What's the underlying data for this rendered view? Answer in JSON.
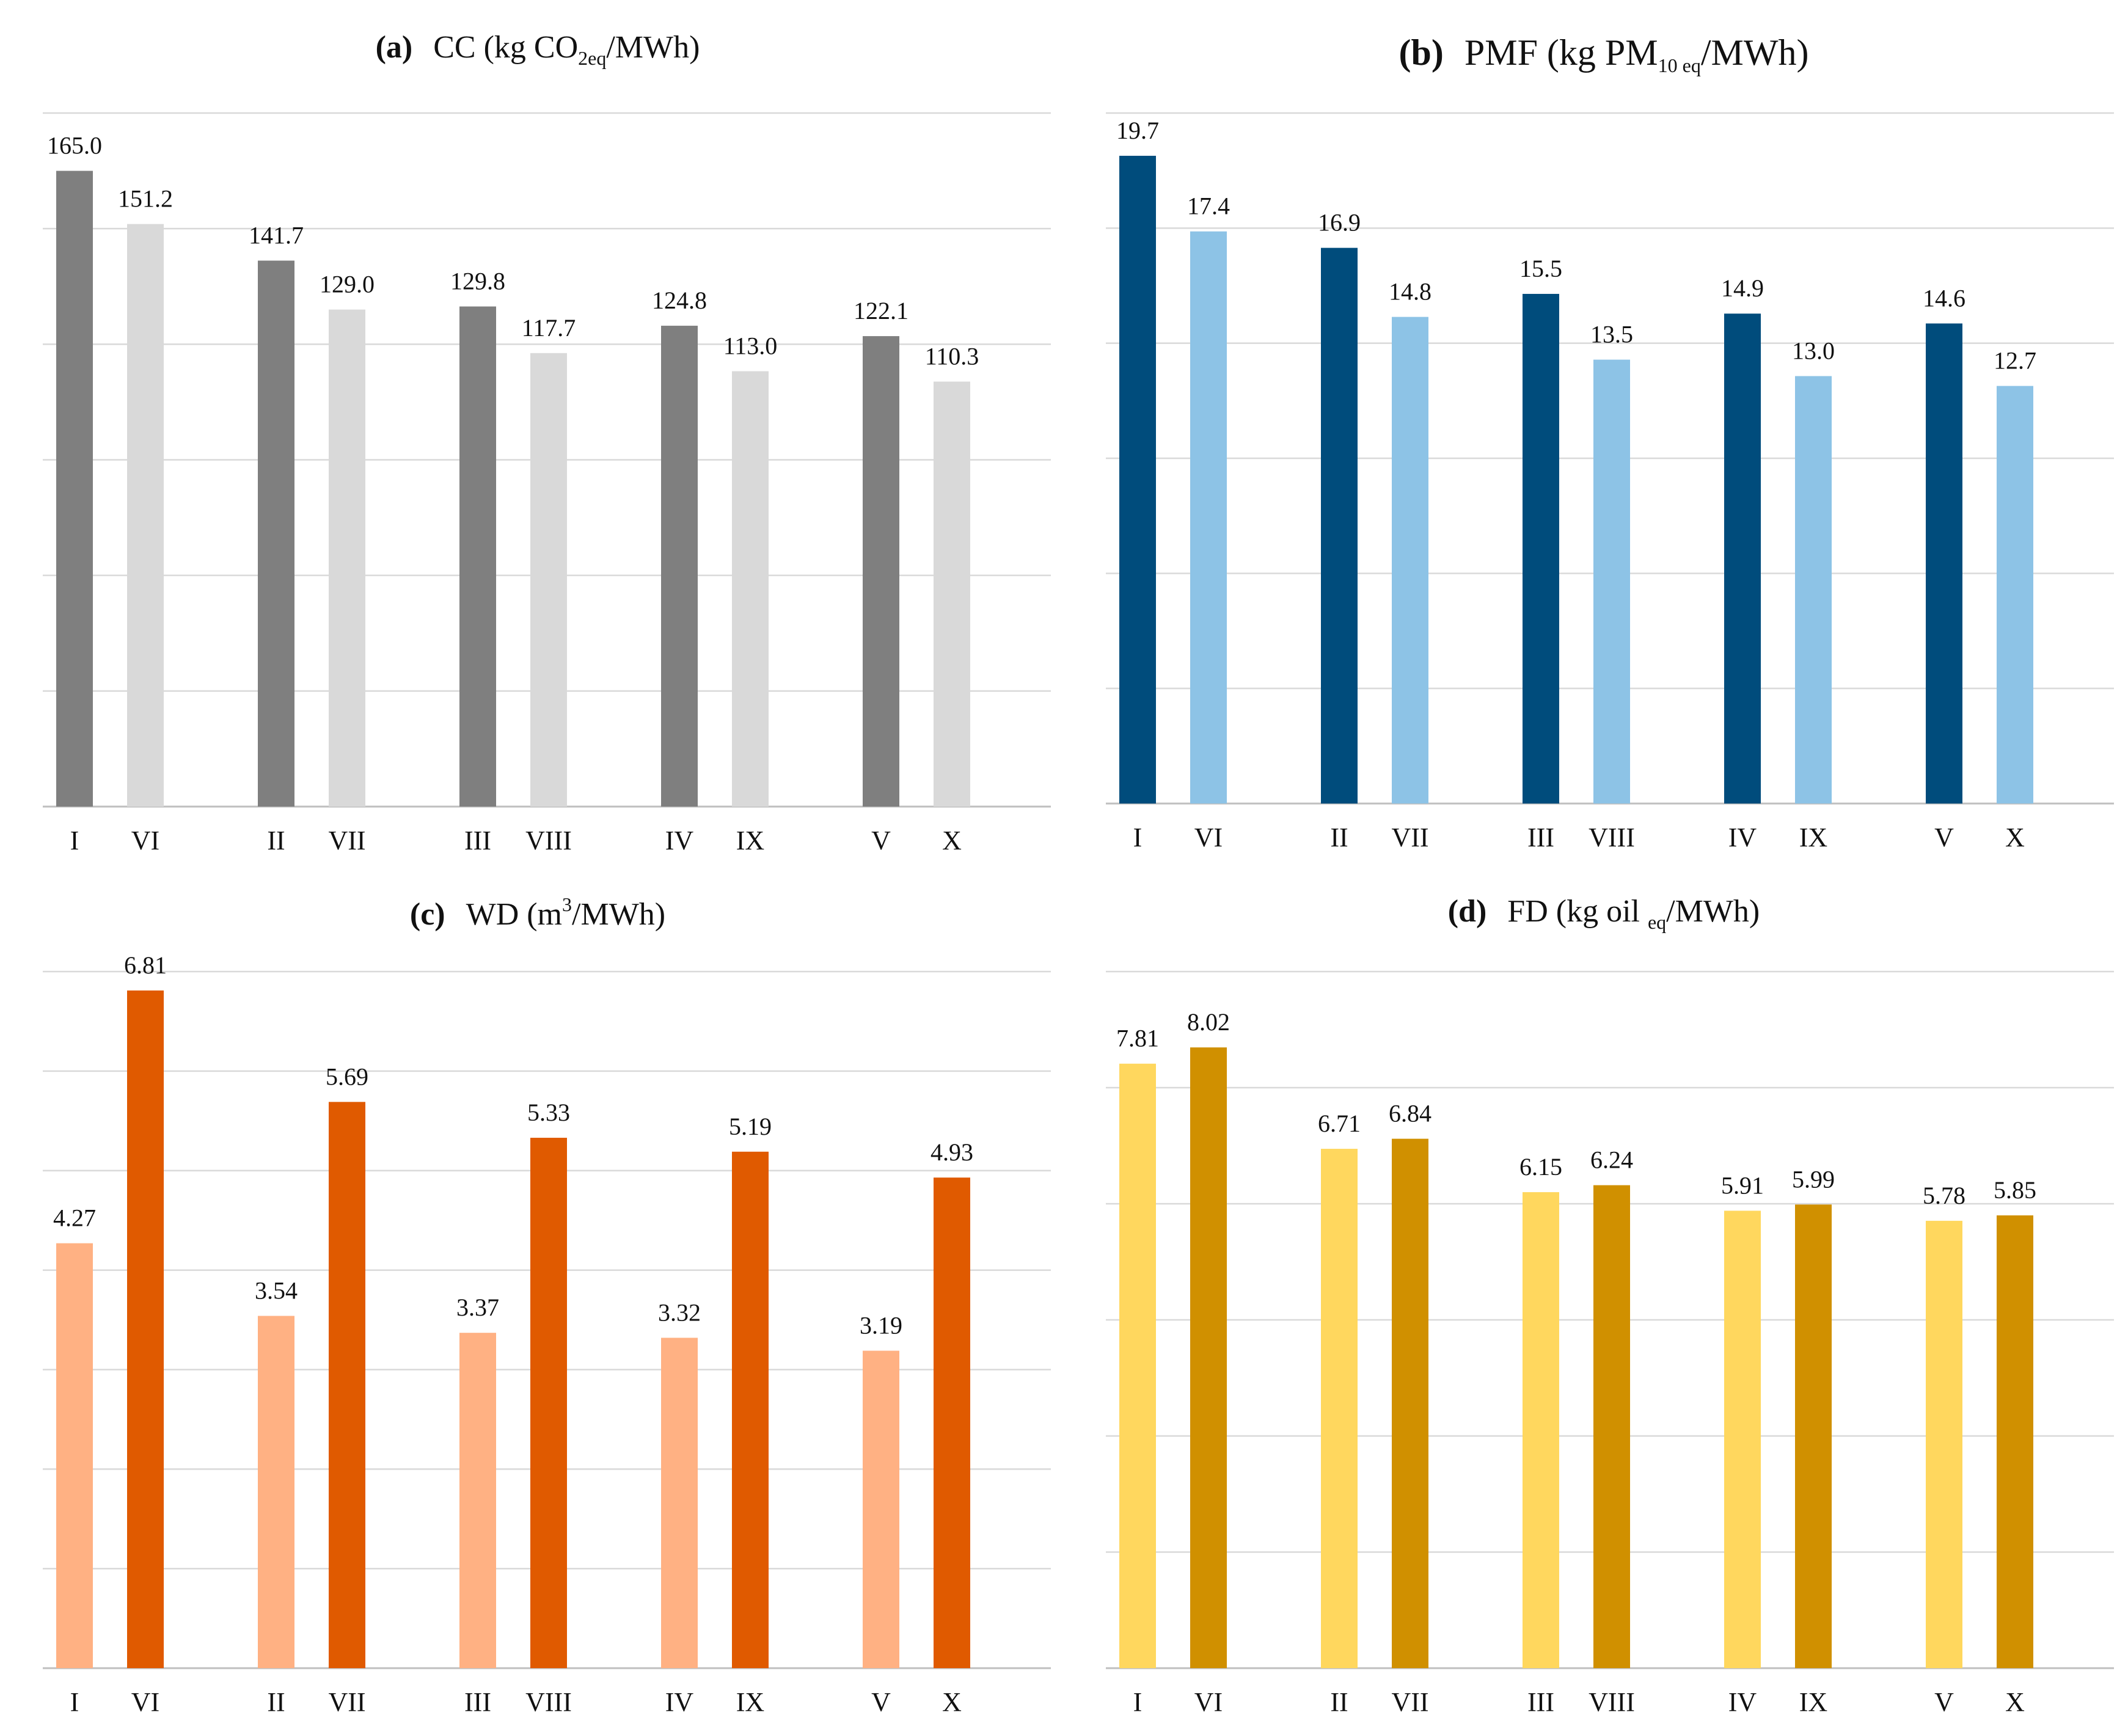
{
  "chart_data": [
    {
      "type": "bar",
      "panel_label": "(a)",
      "title_main": "CC (kg CO",
      "title_sub": "2eq",
      "title_tail": "/MWh)",
      "categories": [
        "I",
        "VI",
        "II",
        "VII",
        "III",
        "VIII",
        "IV",
        "IX",
        "V",
        "X"
      ],
      "values": [
        165.0,
        151.2,
        141.7,
        129.0,
        129.8,
        117.7,
        124.8,
        113.0,
        122.1,
        110.3
      ],
      "value_labels": [
        "165.0",
        "151.2",
        "141.7",
        "129.0",
        "129.8",
        "117.7",
        "124.8",
        "113.0",
        "122.1",
        "110.3"
      ],
      "colors": [
        "#7f7f7f",
        "#d9d9d9"
      ],
      "ylim": [
        0,
        180
      ],
      "gridlines": 6,
      "xlabel": "",
      "ylabel": ""
    },
    {
      "type": "bar",
      "panel_label": "(b)",
      "title_main": "PMF (kg PM",
      "title_sub": "10 eq",
      "title_tail": "/MWh)",
      "categories": [
        "I",
        "VI",
        "II",
        "VII",
        "III",
        "VIII",
        "IV",
        "IX",
        "V",
        "X"
      ],
      "values": [
        19.7,
        17.4,
        16.9,
        14.8,
        15.5,
        13.5,
        14.9,
        13.0,
        14.6,
        12.7
      ],
      "value_labels": [
        "19.7",
        "17.4",
        "16.9",
        "14.8",
        "15.5",
        "13.5",
        "14.9",
        "13.0",
        "14.6",
        "12.7"
      ],
      "colors": [
        "#004c7c",
        "#8dc3e6"
      ],
      "ylim": [
        0,
        21
      ],
      "gridlines": 6,
      "xlabel": "",
      "ylabel": ""
    },
    {
      "type": "bar",
      "panel_label": "(c)",
      "title_main": "WD (m",
      "title_sup": "3",
      "title_tail": "/MWh)",
      "categories": [
        "I",
        "VI",
        "II",
        "VII",
        "III",
        "VIII",
        "IV",
        "IX",
        "V",
        "X"
      ],
      "values": [
        4.27,
        6.81,
        3.54,
        5.69,
        3.37,
        5.33,
        3.32,
        5.19,
        3.19,
        4.93
      ],
      "value_labels": [
        "4.27",
        "6.81",
        "3.54",
        "5.69",
        "3.37",
        "5.33",
        "3.32",
        "5.19",
        "3.19",
        "4.93"
      ],
      "colors": [
        "#ffb183",
        "#e05a00"
      ],
      "ylim": [
        0,
        7
      ],
      "gridlines": 7,
      "xlabel": "",
      "ylabel": ""
    },
    {
      "type": "bar",
      "panel_label": "(d)",
      "title_main": "FD (kg oil ",
      "title_sub": "eq",
      "title_tail": "/MWh)",
      "categories": [
        "I",
        "VI",
        "II",
        "VII",
        "III",
        "VIII",
        "IV",
        "IX",
        "V",
        "X"
      ],
      "values": [
        7.81,
        8.02,
        6.71,
        6.84,
        6.15,
        6.24,
        5.91,
        5.99,
        5.78,
        5.85
      ],
      "value_labels": [
        "7.81",
        "8.02",
        "6.71",
        "6.84",
        "6.15",
        "6.24",
        "5.91",
        "5.99",
        "5.78",
        "5.85"
      ],
      "colors": [
        "#ffd75e",
        "#d09000"
      ],
      "ylim": [
        0,
        9
      ],
      "gridlines": 6,
      "xlabel": "",
      "ylabel": ""
    }
  ]
}
